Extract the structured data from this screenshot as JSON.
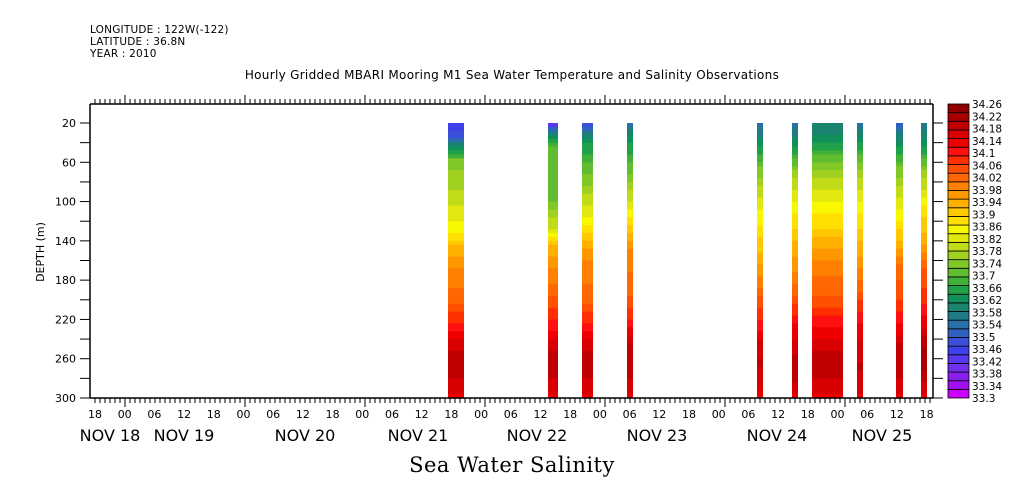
{
  "header": {
    "longitude": "LONGITUDE : 122W(-122)",
    "latitude": "LATITUDE : 36.8N",
    "year": "YEAR : 2010"
  },
  "chart_data": {
    "type": "heatmap",
    "title": "Hourly Gridded MBARI Mooring M1 Sea Water Temperature and Salinity Observations",
    "xlabel": "Sea Water Salinity",
    "ylabel": "DEPTH (m)",
    "y_axis": {
      "range": [
        0,
        300
      ],
      "inverted": true,
      "tick_labels": [
        "20",
        "60",
        "100",
        "140",
        "180",
        "220",
        "260",
        "300"
      ],
      "tick_values": [
        20,
        60,
        100,
        140,
        180,
        220,
        260,
        300
      ],
      "data_top_depth": 20
    },
    "x_axis": {
      "range_hours": [
        0,
        168.6
      ],
      "origin": "NOV 17 17:00",
      "hour_tick_labels": [
        "18",
        "00",
        "06",
        "12",
        "18",
        "00",
        "06",
        "12",
        "18",
        "00",
        "06",
        "12",
        "18",
        "00",
        "06",
        "12",
        "18",
        "00",
        "06",
        "12",
        "18",
        "00",
        "06",
        "12",
        "18",
        "00",
        "06",
        "12",
        "18"
      ],
      "date_labels": [
        "NOV 18",
        "NOV 19",
        "NOV 20",
        "NOV 21",
        "NOV 22",
        "NOV 23",
        "NOV 24",
        "NOV 25"
      ]
    },
    "colorbar": {
      "min": 33.3,
      "max": 34.26,
      "step": 0.04,
      "labels": [
        "34.26",
        "34.22",
        "34.18",
        "34.14",
        "34.1",
        "34.06",
        "34.02",
        "33.98",
        "33.94",
        "33.9",
        "33.86",
        "33.82",
        "33.78",
        "33.74",
        "33.7",
        "33.66",
        "33.62",
        "33.58",
        "33.54",
        "33.5",
        "33.46",
        "33.42",
        "33.38",
        "33.34",
        "33.3"
      ],
      "colors_low_to_high": [
        "#cc00ff",
        "#a010f0",
        "#8a20ee",
        "#7030ee",
        "#5838ee",
        "#4040e8",
        "#3a50d8",
        "#3060c0",
        "#2a70a8",
        "#207a88",
        "#1a8470",
        "#10905a",
        "#20a048",
        "#40b038",
        "#60bc30",
        "#80c828",
        "#a0d020",
        "#c0dc18",
        "#e0e810",
        "#f8f800",
        "#ffe000",
        "#ffc800",
        "#ffb000",
        "#ff9800",
        "#ff8000",
        "#ff6800",
        "#ff5000",
        "#ff3000",
        "#ff1010",
        "#ee0000",
        "#d80000",
        "#c00000",
        "#a80000",
        "#900000"
      ]
    },
    "segments": [
      {
        "start_hour": 71.6,
        "end_hour": 74.8,
        "profile": [
          [
            20,
            33.44
          ],
          [
            35,
            33.5
          ],
          [
            45,
            33.62
          ],
          [
            60,
            33.74
          ],
          [
            100,
            33.8
          ],
          [
            130,
            33.86
          ],
          [
            145,
            33.92
          ],
          [
            170,
            33.98
          ],
          [
            200,
            34.02
          ],
          [
            225,
            34.1
          ],
          [
            245,
            34.16
          ],
          [
            265,
            34.2
          ],
          [
            300,
            34.14
          ]
        ]
      },
      {
        "start_hour": 91.6,
        "end_hour": 93.6,
        "profile": [
          [
            20,
            33.38
          ],
          [
            30,
            33.58
          ],
          [
            45,
            33.7
          ],
          [
            100,
            33.72
          ],
          [
            130,
            33.82
          ],
          [
            145,
            33.92
          ],
          [
            170,
            33.98
          ],
          [
            200,
            34.04
          ],
          [
            225,
            34.1
          ],
          [
            245,
            34.16
          ],
          [
            265,
            34.2
          ],
          [
            300,
            34.14
          ]
        ]
      },
      {
        "start_hour": 98.4,
        "end_hour": 100.6,
        "profile": [
          [
            20,
            33.46
          ],
          [
            35,
            33.62
          ],
          [
            70,
            33.72
          ],
          [
            110,
            33.82
          ],
          [
            140,
            33.92
          ],
          [
            160,
            33.98
          ],
          [
            200,
            34.02
          ],
          [
            225,
            34.1
          ],
          [
            245,
            34.16
          ],
          [
            265,
            34.2
          ],
          [
            300,
            34.14
          ]
        ]
      },
      {
        "start_hour": 107.4,
        "end_hour": 108.6,
        "profile": [
          [
            20,
            33.54
          ],
          [
            35,
            33.62
          ],
          [
            70,
            33.72
          ],
          [
            110,
            33.84
          ],
          [
            130,
            33.92
          ],
          [
            150,
            33.98
          ],
          [
            200,
            34.04
          ],
          [
            225,
            34.1
          ],
          [
            245,
            34.18
          ],
          [
            265,
            34.2
          ],
          [
            300,
            34.14
          ]
        ]
      },
      {
        "start_hour": 133.4,
        "end_hour": 134.6,
        "profile": [
          [
            20,
            33.54
          ],
          [
            40,
            33.62
          ],
          [
            70,
            33.74
          ],
          [
            110,
            33.84
          ],
          [
            140,
            33.9
          ],
          [
            170,
            33.96
          ],
          [
            200,
            34.04
          ],
          [
            225,
            34.1
          ],
          [
            245,
            34.16
          ],
          [
            265,
            34.18
          ],
          [
            300,
            34.14
          ]
        ]
      },
      {
        "start_hour": 140.4,
        "end_hour": 141.6,
        "profile": [
          [
            20,
            33.54
          ],
          [
            40,
            33.62
          ],
          [
            70,
            33.76
          ],
          [
            110,
            33.86
          ],
          [
            140,
            33.92
          ],
          [
            175,
            33.98
          ],
          [
            205,
            34.06
          ],
          [
            225,
            34.12
          ],
          [
            250,
            34.16
          ],
          [
            270,
            34.2
          ],
          [
            300,
            34.14
          ]
        ]
      },
      {
        "start_hour": 144.4,
        "end_hour": 150.6,
        "profile": [
          [
            20,
            33.58
          ],
          [
            40,
            33.64
          ],
          [
            70,
            33.76
          ],
          [
            100,
            33.84
          ],
          [
            130,
            33.9
          ],
          [
            160,
            33.98
          ],
          [
            200,
            34.04
          ],
          [
            220,
            34.1
          ],
          [
            245,
            34.16
          ],
          [
            265,
            34.2
          ],
          [
            300,
            34.14
          ]
        ]
      },
      {
        "start_hour": 153.4,
        "end_hour": 154.6,
        "profile": [
          [
            20,
            33.54
          ],
          [
            40,
            33.64
          ],
          [
            70,
            33.76
          ],
          [
            110,
            33.86
          ],
          [
            140,
            33.92
          ],
          [
            170,
            33.98
          ],
          [
            200,
            34.06
          ],
          [
            225,
            34.12
          ],
          [
            250,
            34.16
          ],
          [
            270,
            34.18
          ],
          [
            300,
            34.14
          ]
        ]
      },
      {
        "start_hour": 161.2,
        "end_hour": 162.6,
        "profile": [
          [
            20,
            33.5
          ],
          [
            40,
            33.62
          ],
          [
            70,
            33.74
          ],
          [
            110,
            33.84
          ],
          [
            140,
            33.92
          ],
          [
            170,
            34.02
          ],
          [
            200,
            34.06
          ],
          [
            225,
            34.12
          ],
          [
            245,
            34.18
          ],
          [
            265,
            34.2
          ],
          [
            300,
            34.14
          ]
        ]
      },
      {
        "start_hour": 166.2,
        "end_hour": 167.4,
        "profile": [
          [
            20,
            33.56
          ],
          [
            40,
            33.62
          ],
          [
            70,
            33.76
          ],
          [
            110,
            33.88
          ],
          [
            140,
            33.94
          ],
          [
            170,
            34.04
          ],
          [
            200,
            34.08
          ],
          [
            225,
            34.14
          ],
          [
            245,
            34.2
          ],
          [
            265,
            34.22
          ],
          [
            300,
            34.14
          ]
        ]
      }
    ]
  }
}
